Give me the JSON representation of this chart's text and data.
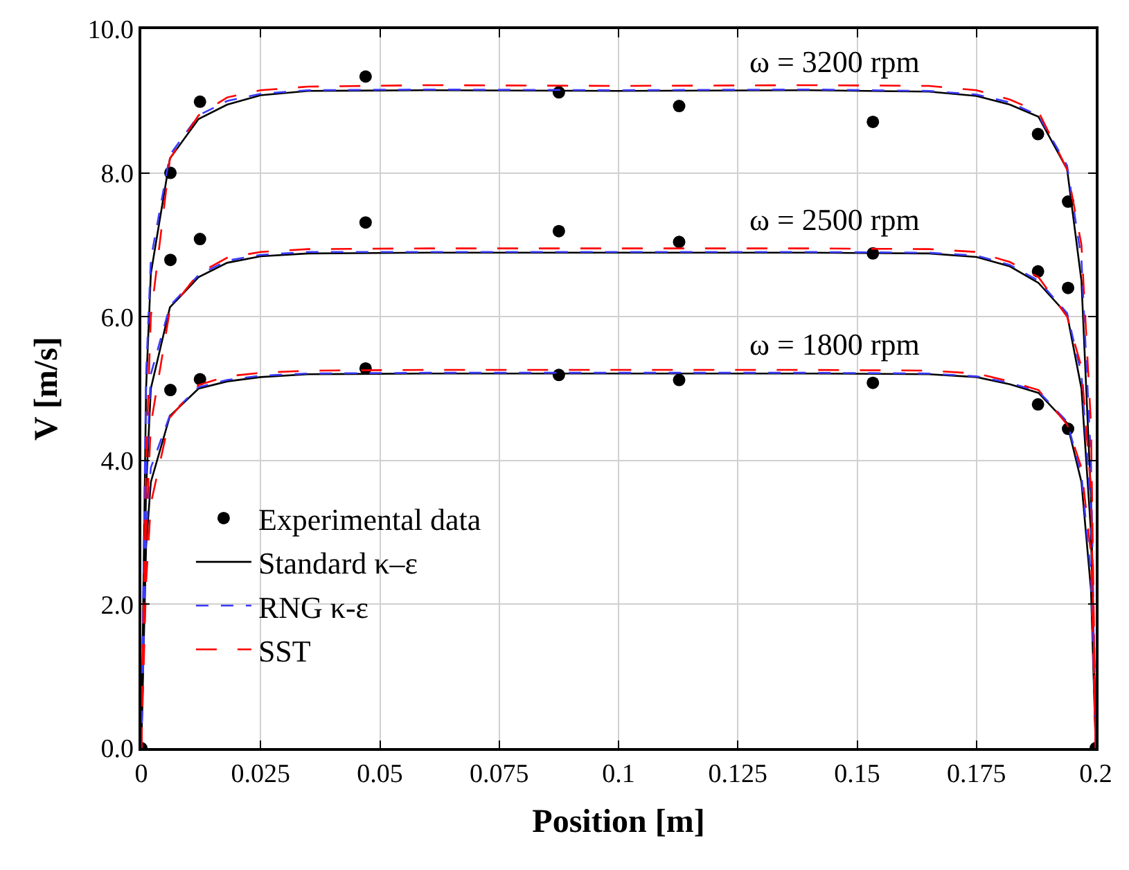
{
  "chart_data": {
    "type": "line",
    "xlabel": "Position [m]",
    "ylabel": "V [m/s]",
    "xlim": [
      0,
      0.2
    ],
    "ylim": [
      0,
      10
    ],
    "xticks": [
      0,
      0.025,
      0.05,
      0.075,
      0.1,
      0.125,
      0.15,
      0.175,
      0.2
    ],
    "yticks": [
      {
        "value": 0,
        "label": "0.0"
      },
      {
        "value": 2,
        "label": "2.0"
      },
      {
        "value": 4,
        "label": "4.0"
      },
      {
        "value": 6,
        "label": "6.0"
      },
      {
        "value": 8,
        "label": "8.0"
      },
      {
        "value": 10,
        "label": "10.0"
      }
    ],
    "grid": true,
    "legend": "bottom left",
    "annotations": [
      "ω = 3200 rpm",
      "ω = 2500 rpm",
      "ω = 1800 rpm"
    ],
    "series": [
      {
        "name": "Experimental data",
        "type": "scatter",
        "marker": "circle",
        "color": "#000000",
        "x": [
          0,
          0.0061,
          0.0123,
          0.047,
          0.0875,
          0.1127,
          0.1533,
          0.1879,
          0.1942,
          0.0061,
          0.0123,
          0.047,
          0.0875,
          0.1127,
          0.1533,
          0.1879,
          0.1942,
          0.0061,
          0.0123,
          0.047,
          0.0875,
          0.1127,
          0.1533,
          0.1879,
          0.1942,
          0.2
        ],
        "values": [
          0,
          8.0,
          8.99,
          9.34,
          9.12,
          8.93,
          8.71,
          8.54,
          7.6,
          6.79,
          7.08,
          7.31,
          7.19,
          7.04,
          6.88,
          6.63,
          6.4,
          4.98,
          5.13,
          5.28,
          5.19,
          5.12,
          5.08,
          4.78,
          4.44,
          0
        ]
      },
      {
        "name": "Standard κ–ε",
        "line_style": "solid",
        "color": "#000000",
        "x": [
          0,
          0.001,
          0.002,
          0.006,
          0.012,
          0.018,
          0.025,
          0.035,
          0.06,
          0.1,
          0.14,
          0.165,
          0.175,
          0.182,
          0.188,
          0.194,
          0.197,
          0.199,
          0.2,
          null,
          0,
          0.001,
          0.002,
          0.006,
          0.012,
          0.018,
          0.025,
          0.035,
          0.06,
          0.1,
          0.14,
          0.165,
          0.175,
          0.182,
          0.188,
          0.194,
          0.197,
          0.199,
          0.2,
          null,
          0,
          0.001,
          0.002,
          0.006,
          0.012,
          0.018,
          0.025,
          0.035,
          0.06,
          0.1,
          0.14,
          0.165,
          0.175,
          0.182,
          0.188,
          0.194,
          0.197,
          0.199,
          0.2
        ],
        "values": [
          0,
          5.0,
          6.6,
          8.2,
          8.75,
          8.95,
          9.08,
          9.14,
          9.15,
          9.14,
          9.15,
          9.13,
          9.07,
          8.95,
          8.78,
          8.05,
          6.5,
          3.5,
          0,
          null,
          0,
          3.6,
          5.0,
          6.13,
          6.55,
          6.75,
          6.84,
          6.88,
          6.89,
          6.89,
          6.89,
          6.88,
          6.83,
          6.7,
          6.47,
          6.03,
          5.0,
          3.0,
          0,
          null,
          0,
          2.8,
          3.7,
          4.62,
          5.0,
          5.1,
          5.16,
          5.2,
          5.21,
          5.21,
          5.21,
          5.2,
          5.16,
          5.06,
          4.94,
          4.52,
          3.7,
          2.2,
          0
        ]
      },
      {
        "name": "RNG κ-ε",
        "line_style": "dashed",
        "color": "#3a3aff",
        "x": [
          0,
          0.001,
          0.002,
          0.006,
          0.012,
          0.018,
          0.025,
          0.035,
          0.06,
          0.1,
          0.14,
          0.165,
          0.175,
          0.182,
          0.188,
          0.194,
          0.197,
          0.199,
          0.2,
          null,
          0,
          0.001,
          0.002,
          0.006,
          0.012,
          0.018,
          0.025,
          0.035,
          0.06,
          0.1,
          0.14,
          0.165,
          0.175,
          0.182,
          0.188,
          0.194,
          0.197,
          0.199,
          0.2,
          null,
          0,
          0.001,
          0.002,
          0.006,
          0.012,
          0.018,
          0.025,
          0.035,
          0.06,
          0.1,
          0.14,
          0.165,
          0.175,
          0.182,
          0.188,
          0.194,
          0.197,
          0.199,
          0.2
        ],
        "values": [
          0,
          5.2,
          6.8,
          8.25,
          8.8,
          9.0,
          9.1,
          9.15,
          9.16,
          9.15,
          9.16,
          9.14,
          9.09,
          8.98,
          8.8,
          8.1,
          6.8,
          4.0,
          0,
          null,
          0,
          3.8,
          5.2,
          6.15,
          6.58,
          6.78,
          6.86,
          6.9,
          6.9,
          6.9,
          6.9,
          6.89,
          6.85,
          6.72,
          6.5,
          6.05,
          5.2,
          3.3,
          0,
          null,
          0,
          3.0,
          3.9,
          4.63,
          5.02,
          5.12,
          5.18,
          5.21,
          5.22,
          5.22,
          5.22,
          5.21,
          5.17,
          5.08,
          4.96,
          4.54,
          3.8,
          2.4,
          0
        ]
      },
      {
        "name": "SST",
        "line_style": "longdash",
        "color": "#ff0000",
        "x": [
          0,
          0.001,
          0.002,
          0.006,
          0.012,
          0.018,
          0.025,
          0.035,
          0.06,
          0.1,
          0.14,
          0.165,
          0.175,
          0.182,
          0.188,
          0.194,
          0.197,
          0.199,
          0.2,
          null,
          0,
          0.001,
          0.002,
          0.006,
          0.012,
          0.018,
          0.025,
          0.035,
          0.06,
          0.1,
          0.14,
          0.165,
          0.175,
          0.182,
          0.188,
          0.194,
          0.197,
          0.199,
          0.2,
          null,
          0,
          0.001,
          0.002,
          0.006,
          0.012,
          0.018,
          0.025,
          0.035,
          0.06,
          0.1,
          0.14,
          0.165,
          0.175,
          0.182,
          0.188,
          0.194,
          0.197,
          0.199,
          0.2
        ],
        "values": [
          0,
          4.0,
          6.0,
          8.2,
          8.8,
          9.05,
          9.15,
          9.2,
          9.22,
          9.21,
          9.22,
          9.21,
          9.15,
          9.02,
          8.85,
          8.05,
          7.0,
          4.5,
          0,
          null,
          0,
          3.0,
          4.5,
          6.1,
          6.6,
          6.82,
          6.9,
          6.94,
          6.95,
          6.95,
          6.95,
          6.94,
          6.9,
          6.76,
          6.55,
          6.0,
          5.3,
          3.6,
          0,
          null,
          0,
          2.3,
          3.4,
          4.6,
          5.05,
          5.17,
          5.22,
          5.25,
          5.26,
          5.26,
          5.26,
          5.25,
          5.21,
          5.1,
          4.98,
          4.5,
          3.9,
          2.7,
          0
        ]
      }
    ]
  }
}
